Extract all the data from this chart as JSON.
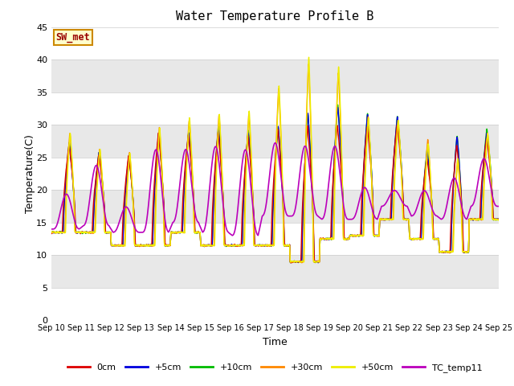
{
  "title": "Water Temperature Profile B",
  "xlabel": "Time",
  "ylabel": "Temperature(C)",
  "xlim": [
    0,
    15
  ],
  "ylim": [
    0,
    45
  ],
  "yticks": [
    0,
    5,
    10,
    15,
    20,
    25,
    30,
    35,
    40,
    45
  ],
  "xtick_labels": [
    "Sep 10",
    "Sep 11",
    "Sep 12",
    "Sep 13",
    "Sep 14",
    "Sep 15",
    "Sep 16",
    "Sep 17",
    "Sep 18",
    "Sep 19",
    "Sep 20",
    "Sep 21",
    "Sep 22",
    "Sep 23",
    "Sep 24",
    "Sep 25"
  ],
  "colors": {
    "0cm": "#dd0000",
    "+5cm": "#0000dd",
    "+10cm": "#00bb00",
    "+30cm": "#ff8800",
    "+50cm": "#eeee00",
    "TC_temp11": "#bb00bb"
  },
  "legend_labels": [
    "0cm",
    "+5cm",
    "+10cm",
    "+30cm",
    "+50cm",
    "TC_temp11"
  ],
  "band_colors": [
    "#ffffff",
    "#e8e8e8"
  ],
  "annotation_text": "SW_met",
  "annotation_fg": "#990000",
  "annotation_bg": "#ffffcc",
  "annotation_border": "#cc8800",
  "figsize": [
    6.4,
    4.8
  ],
  "dpi": 100
}
